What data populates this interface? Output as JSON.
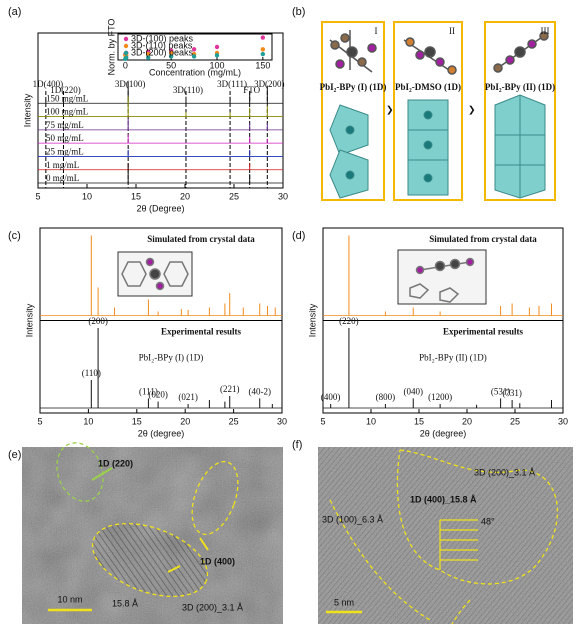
{
  "chart_data": [
    {
      "type": "xrd",
      "label": "(a)",
      "x_label": "2θ (Degree)",
      "y_label": "Intensity",
      "xlim": [
        5,
        30
      ],
      "xticks": [
        5,
        10,
        15,
        20,
        25,
        30
      ],
      "reference_lines": [
        {
          "x": 5.8,
          "label": "1D(400)"
        },
        {
          "x": 7.6,
          "label": "1D(220)"
        },
        {
          "x": 14.2,
          "label": "3D(100)"
        },
        {
          "x": 20.1,
          "label": "3D(110)"
        },
        {
          "x": 24.6,
          "label": "3D(111)"
        },
        {
          "x": 26.6,
          "label": "FTO"
        },
        {
          "x": 28.4,
          "label": "3D(200)"
        }
      ],
      "series": [
        {
          "name": "150 mg/mL",
          "color": "#111111",
          "x": [
            5.8,
            7.6,
            14.2,
            20.1,
            24.6,
            26.6,
            28.4
          ],
          "values": [
            0.15,
            0.2,
            1.0,
            0.3,
            0.3,
            0.5,
            0.8
          ]
        },
        {
          "name": "100 mg/mL",
          "color": "#8a8a00",
          "x": [
            14.2,
            20.1,
            24.6,
            26.6,
            28.4
          ],
          "values": [
            0.9,
            0.2,
            0.2,
            0.4,
            0.5
          ]
        },
        {
          "name": "75 mg/mL",
          "color": "#6a2c91",
          "x": [
            14.2,
            26.6,
            28.4
          ],
          "values": [
            0.5,
            0.3,
            0.3
          ]
        },
        {
          "name": "50 mg/mL",
          "color": "#d020c0",
          "x": [
            14.2,
            26.6,
            28.4
          ],
          "values": [
            0.4,
            0.3,
            0.2
          ]
        },
        {
          "name": "25 mg/mL",
          "color": "#1a2fbf",
          "x": [
            14.2,
            26.6
          ],
          "values": [
            0.3,
            0.3
          ]
        },
        {
          "name": "1 mg/mL",
          "color": "#d01818",
          "x": [
            14.2,
            26.6
          ],
          "values": [
            0.3,
            0.3
          ]
        },
        {
          "name": "0 mg/mL",
          "color": "#111111",
          "x": [
            14.2,
            26.6
          ],
          "values": [
            0.9,
            0.4
          ]
        }
      ]
    },
    {
      "type": "scatter",
      "x_label": "Concentration (mg/mL)",
      "y_label": "Norm. by FTO",
      "xlim": [
        -8,
        160
      ],
      "xticks": [
        0,
        50,
        100,
        150
      ],
      "ylim": [
        0,
        1.1
      ],
      "x": [
        0,
        1,
        25,
        50,
        75,
        100,
        150
      ],
      "series": [
        {
          "name": "3D-(100) peaks",
          "color": "#e0359a",
          "values": [
            0.25,
            0.3,
            0.35,
            0.4,
            0.45,
            0.55,
            0.95
          ]
        },
        {
          "name": "3D-(110) peaks",
          "color": "#f28a1a",
          "values": [
            0.2,
            0.2,
            0.25,
            0.3,
            0.25,
            0.3,
            0.45
          ]
        },
        {
          "name": "3D-(200) peaks",
          "color": "#1f9e9a",
          "values": [
            0.05,
            0.1,
            0.1,
            0.15,
            0.15,
            0.2,
            0.25
          ]
        }
      ]
    },
    {
      "type": "xrd",
      "label": "(c)",
      "x_label": "2θ (degree)",
      "y_label": "Intensity",
      "xlim": [
        5,
        30
      ],
      "xticks": [
        5,
        10,
        15,
        20,
        25,
        30
      ],
      "compound": "PbI₂-BPy (I) (1D)",
      "series": [
        {
          "name": "Simulated from crystal data",
          "color": "#f28a1a",
          "x": [
            10.3,
            11.0,
            12.7,
            16.2,
            17.2,
            19.6,
            20.3,
            22.5,
            24.1,
            24.6,
            26.0,
            27.7,
            28.5,
            29.3
          ],
          "values": [
            1.0,
            0.35,
            0.1,
            0.2,
            0.05,
            0.08,
            0.07,
            0.1,
            0.15,
            0.28,
            0.1,
            0.15,
            0.12,
            0.1
          ]
        },
        {
          "name": "Experimental results",
          "color": "#111111",
          "x": [
            10.3,
            11.0,
            16.2,
            17.2,
            20.3,
            22.5,
            24.1,
            24.6,
            27.7,
            29.0
          ],
          "values": [
            0.35,
            1.0,
            0.12,
            0.08,
            0.05,
            0.1,
            0.08,
            0.15,
            0.12,
            0.05
          ],
          "labels": [
            "(110)",
            "(200)",
            "(111)",
            "(020)",
            "(021)",
            null,
            null,
            "(221)",
            "(40-2)",
            null
          ]
        }
      ]
    },
    {
      "type": "xrd",
      "label": "(d)",
      "x_label": "2θ (degree)",
      "y_label": "Intensity",
      "xlim": [
        5,
        30
      ],
      "xticks": [
        5,
        10,
        15,
        20,
        25,
        30
      ],
      "compound": "PbI₂-BPy (II) (1D)",
      "series": [
        {
          "name": "Simulated from crystal data",
          "color": "#f28a1a",
          "x": [
            7.7,
            11.5,
            14.4,
            17.2,
            23.5,
            24.7,
            26.5,
            27.5,
            28.8
          ],
          "values": [
            1.0,
            0.05,
            0.1,
            0.05,
            0.12,
            0.15,
            0.1,
            0.12,
            0.15
          ]
        },
        {
          "name": "Experimental results",
          "color": "#111111",
          "x": [
            5.8,
            7.7,
            11.5,
            14.4,
            17.2,
            21.0,
            23.5,
            24.7,
            25.5,
            28.8
          ],
          "values": [
            0.05,
            1.0,
            0.05,
            0.12,
            0.05,
            0.04,
            0.12,
            0.1,
            0.06,
            0.1
          ],
          "labels": [
            "(400)",
            "(220)",
            "(800)",
            "(040)",
            "(1200)",
            null,
            "(531)",
            "(731)",
            null,
            null
          ]
        }
      ]
    }
  ],
  "panel_b": {
    "label": "(b)",
    "structures": [
      {
        "numeral": "I",
        "name": "PbI₂-BPy (I) (1D)"
      },
      {
        "numeral": "II",
        "name": "PbI₂-DMSO (1D)"
      },
      {
        "numeral": "III",
        "name": "PbI₂-BPy (II) (1D)"
      }
    ]
  },
  "panel_e": {
    "label": "(e)",
    "annotations": [
      "1D (220)",
      "1D (400)",
      "15.8 Å",
      "3D (200)_3.1 Å"
    ],
    "scale_bar": "10 nm"
  },
  "panel_f": {
    "label": "(f)",
    "annotations": [
      "3D (200)_3.1 Å",
      "1D (400)_15.8 Å",
      "48°",
      "3D (100)_6.3 Å"
    ],
    "scale_bar": "5 nm"
  }
}
